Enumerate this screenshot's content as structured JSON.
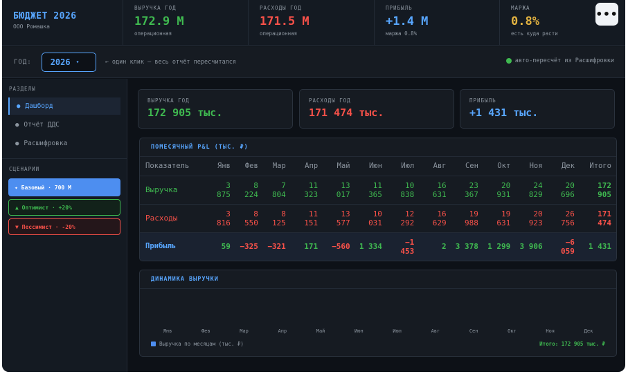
{
  "header": {
    "brand_title": "БЮДЖЕТ 2026",
    "brand_sub": "ООО Ромашка",
    "kpis": [
      {
        "label": "ВЫРУЧКА ГОД",
        "value": "172.9 М",
        "note": "операционная",
        "color": "#3fb950"
      },
      {
        "label": "РАСХОДЫ ГОД",
        "value": "171.5 М",
        "note": "операционная",
        "color": "#f85149"
      },
      {
        "label": "ПРИБЫЛЬ",
        "value": "+1.4 М",
        "note": "маржа 0.8%",
        "color": "#58a6ff"
      },
      {
        "label": "МАРЖА",
        "value": "0.8%",
        "note": "есть куда расти",
        "color": "#e3b341"
      }
    ],
    "more_label": "•••"
  },
  "year_bar": {
    "label": "ГОД:",
    "selected_year": "2026",
    "caret": "▾",
    "hint": "← один клик — весь отчёт пересчитался",
    "auto_note": "авто-пересчёт из Расшифровки"
  },
  "sidebar": {
    "sections_head": "РАЗДЕЛЫ",
    "items": [
      {
        "label": "Дашборд",
        "active": true
      },
      {
        "label": "Отчёт ДДС",
        "active": false
      },
      {
        "label": "Расшифровка",
        "active": false
      }
    ],
    "scenarios_head": "СЦЕНАРИИ",
    "scenarios": [
      {
        "label": "✦ Базовый · 700 М"
      },
      {
        "label": "▲ Оптимист · +20%"
      },
      {
        "label": "▼ Пессимист · -20%"
      }
    ]
  },
  "summary": [
    {
      "label": "ВЫРУЧКА ГОД",
      "value": "172 905 тыс."
    },
    {
      "label": "РАСХОДЫ ГОД",
      "value": "171 474 тыс."
    },
    {
      "label": "ПРИБЫЛЬ",
      "value": "+1 431 тыс."
    }
  ],
  "pl": {
    "title": "ПОМЕСЯЧНЫЙ P&L (ТЫС. ₽)",
    "headers": [
      "Показатель",
      "Янв",
      "Фев",
      "Мар",
      "Апр",
      "Май",
      "Июн",
      "Июл",
      "Авг",
      "Сен",
      "Окт",
      "Ноя",
      "Дек",
      "Итого"
    ],
    "rows": [
      {
        "name": "Выручка",
        "values": [
          "3 875",
          "8 224",
          "7 804",
          "11 323",
          "13 017",
          "11 365",
          "10 838",
          "16 631",
          "23 367",
          "20 931",
          "24 829",
          "20 696"
        ],
        "total": "172 905"
      },
      {
        "name": "Расходы",
        "values": [
          "3 816",
          "8 550",
          "8 125",
          "11 151",
          "13 577",
          "10 031",
          "12 292",
          "16 629",
          "19 988",
          "19 631",
          "20 923",
          "26 756"
        ],
        "total": "171 474"
      },
      {
        "name": "Прибыль",
        "values": [
          "59",
          "−325",
          "−321",
          "171",
          "−560",
          "1 334",
          "−1 453",
          "2",
          "3 378",
          "1 299",
          "3 906",
          "−6 059"
        ],
        "total": "1 431"
      }
    ]
  },
  "revenue_chart": {
    "title": "ДИНАМИКА ВЫРУЧКИ",
    "months": [
      "Янв",
      "Фев",
      "Мар",
      "Апр",
      "Май",
      "Июн",
      "Июл",
      "Авг",
      "Сен",
      "Окт",
      "Ноя",
      "Дек"
    ],
    "legend": "Выручка по месяцам (тыс. ₽)",
    "total": "Итого: 172 905 тыс. ₽"
  }
}
